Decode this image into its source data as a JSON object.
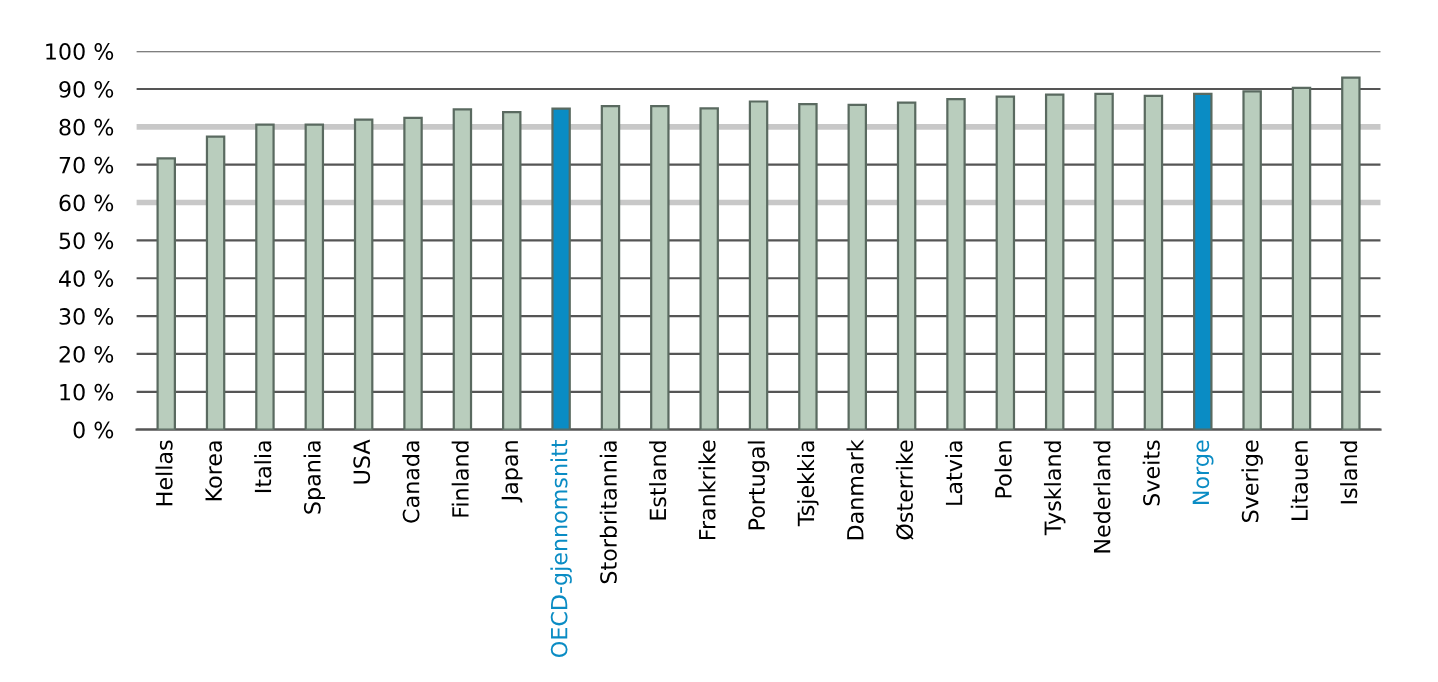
{
  "chart_data": {
    "type": "bar",
    "categories": [
      "Hellas",
      "Korea",
      "Italia",
      "Spania",
      "USA",
      "Canada",
      "Finland",
      "Japan",
      "OECD-gjennomsnitt",
      "Storbritannia",
      "Estland",
      "Frankrike",
      "Portugal",
      "Tsjekkia",
      "Danmark",
      "Østerrike",
      "Latvia",
      "Polen",
      "Tyskland",
      "Nederland",
      "Sveits",
      "Norge",
      "Sverige",
      "Litauen",
      "Island"
    ],
    "values": [
      71.7,
      77.4,
      80.6,
      80.6,
      81.9,
      82.4,
      84.6,
      83.9,
      84.8,
      85.5,
      85.5,
      84.9,
      86.7,
      86.0,
      85.8,
      86.4,
      87.3,
      88.0,
      88.5,
      88.7,
      88.2,
      88.7,
      89.4,
      90.3,
      93.0
    ],
    "colors": [
      "#b9cdbd",
      "#b9cdbd",
      "#b9cdbd",
      "#b9cdbd",
      "#b9cdbd",
      "#b9cdbd",
      "#b9cdbd",
      "#b9cdbd",
      "#0a8cc4",
      "#b9cdbd",
      "#b9cdbd",
      "#b9cdbd",
      "#b9cdbd",
      "#b9cdbd",
      "#b9cdbd",
      "#b9cdbd",
      "#b9cdbd",
      "#b9cdbd",
      "#b9cdbd",
      "#b9cdbd",
      "#b9cdbd",
      "#0a8cc4",
      "#b9cdbd",
      "#b9cdbd",
      "#b9cdbd"
    ],
    "ylim": [
      0,
      100
    ],
    "yticks": [
      {
        "value": 0,
        "label": "0 %"
      },
      {
        "value": 10,
        "label": "10 %"
      },
      {
        "value": 20,
        "label": "20 %"
      },
      {
        "value": 30,
        "label": "30 %"
      },
      {
        "value": 40,
        "label": "40 %"
      },
      {
        "value": 50,
        "label": "50 %"
      },
      {
        "value": 60,
        "label": "60 %"
      },
      {
        "value": 70,
        "label": "70 %"
      },
      {
        "value": 80,
        "label": "80 %"
      },
      {
        "value": 90,
        "label": "90 %"
      },
      {
        "value": 100,
        "label": "100 %"
      }
    ],
    "grid": "y"
  }
}
